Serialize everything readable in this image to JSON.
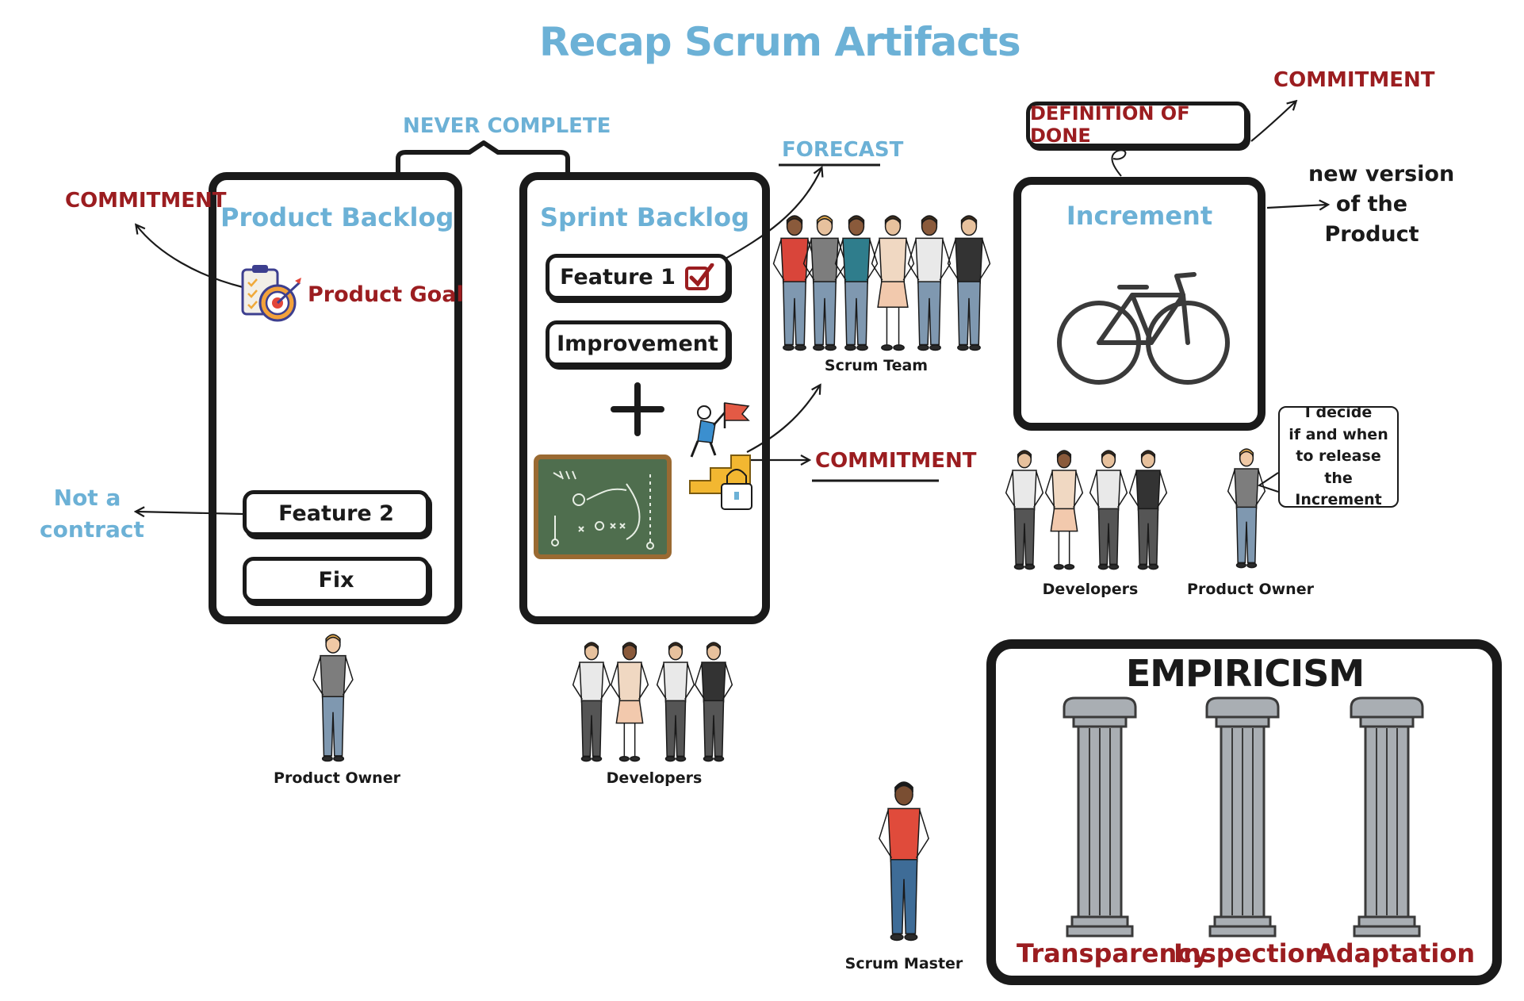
{
  "title": "Recap Scrum Artifacts",
  "labels": {
    "never_complete": "NEVER COMPLETE",
    "commitment_left": "COMMITMENT",
    "not_a_contract_1": "Not a",
    "not_a_contract_2": "contract",
    "forecast": "FORECAST",
    "commitment_middle": "COMMITMENT",
    "commitment_right": "COMMITMENT",
    "new_version_1": "new version",
    "new_version_2": "of the",
    "new_version_3": "Product"
  },
  "product_backlog": {
    "title": "Product Backlog",
    "goal": "Product Goal",
    "items": [
      "Feature 2",
      "Fix"
    ]
  },
  "sprint_backlog": {
    "title": "Sprint Backlog",
    "items": [
      "Feature 1",
      "Improvement"
    ],
    "plus": "+"
  },
  "increment": {
    "title": "Increment",
    "definition_of_done": "DEFINITION OF DONE"
  },
  "people": {
    "scrum_team": "Scrum Team",
    "product_owner_left": "Product Owner",
    "developers_middle": "Developers",
    "developers_right": "Developers",
    "product_owner_right": "Product Owner",
    "scrum_master": "Scrum Master"
  },
  "speech_bubble": {
    "lines": [
      "I decide",
      "if and when",
      "to release",
      "the Increment"
    ]
  },
  "empiricism": {
    "title": "EMPIRICISM",
    "pillars": [
      "Transparency",
      "Inspection",
      "Adaptation"
    ]
  },
  "colors": {
    "blue": "#6cb1d6",
    "red": "#9b1d20",
    "ink": "#1a1a1a",
    "board_green": "#4f6e4e",
    "pillar_gray": "#a9aeb3"
  }
}
